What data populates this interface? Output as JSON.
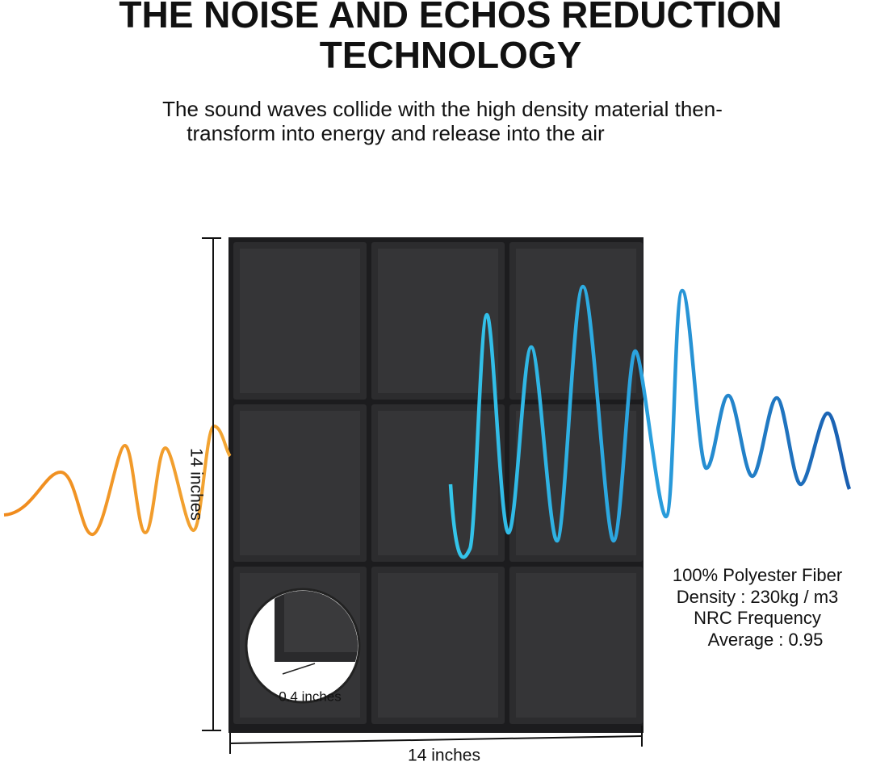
{
  "header": {
    "title": [
      "THE NOISE AND ECHOS REDUCTION",
      "TECHNOLOGY"
    ],
    "subtitle": [
      "The sound waves collide with the high density material then-",
      "transform into energy and release into the air"
    ]
  },
  "dimensions": {
    "height": "14 inches",
    "width": "14 inches",
    "thickness": "0.4 inches"
  },
  "specs": [
    "100% Polyester Fiber",
    "Density : 230kg / m3",
    "NRC Frequency",
    "Average : 0.95"
  ]
}
